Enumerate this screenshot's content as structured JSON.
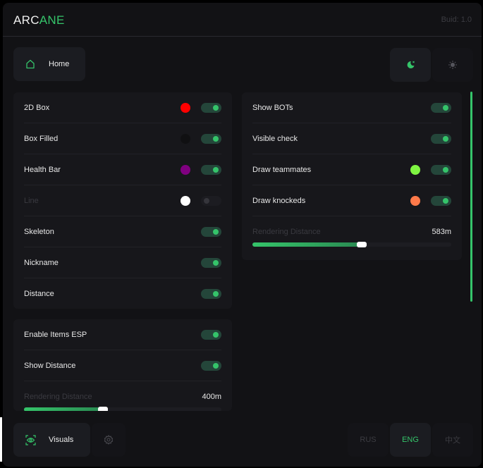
{
  "header": {
    "logo_part1": "ARC",
    "logo_part2": "ANE",
    "build": "Buid: 1.0"
  },
  "nav": {
    "home_label": "Home",
    "theme": {
      "active": "dark"
    }
  },
  "player_esp": {
    "rows": [
      {
        "label": "2D Box",
        "color": "#ff0000",
        "enabled": true
      },
      {
        "label": "Box Filled",
        "color": "#101012",
        "enabled": true
      },
      {
        "label": "Health Bar",
        "color": "#800080",
        "enabled": true
      },
      {
        "label": "Line",
        "color": "#ffffff",
        "enabled": false
      },
      {
        "label": "Skeleton",
        "enabled": true
      },
      {
        "label": "Nickname",
        "enabled": true
      },
      {
        "label": "Distance",
        "enabled": true
      }
    ]
  },
  "bots": {
    "rows": [
      {
        "label": "Show BOTs",
        "enabled": true
      },
      {
        "label": "Visible check",
        "enabled": true
      },
      {
        "label": "Draw teammates",
        "color": "#7ff542",
        "enabled": true
      },
      {
        "label": "Draw knockeds",
        "color": "#ff7a4a",
        "enabled": true
      }
    ],
    "rendering_label": "Rendering Distance",
    "rendering_value": "583m",
    "rendering_fraction": 0.55
  },
  "items": {
    "rows": [
      {
        "label": "Enable Items ESP",
        "enabled": true
      },
      {
        "label": "Show Distance",
        "enabled": true
      }
    ],
    "rendering_label": "Rendering Distance",
    "rendering_value": "400m",
    "rendering_fraction": 0.4
  },
  "footer": {
    "visuals_label": "Visuals",
    "languages": [
      "RUS",
      "ENG",
      "中文"
    ],
    "active_language": "ENG"
  },
  "colors": {
    "accent": "#35c46a",
    "bg": "#121215",
    "panel": "#17171b"
  }
}
